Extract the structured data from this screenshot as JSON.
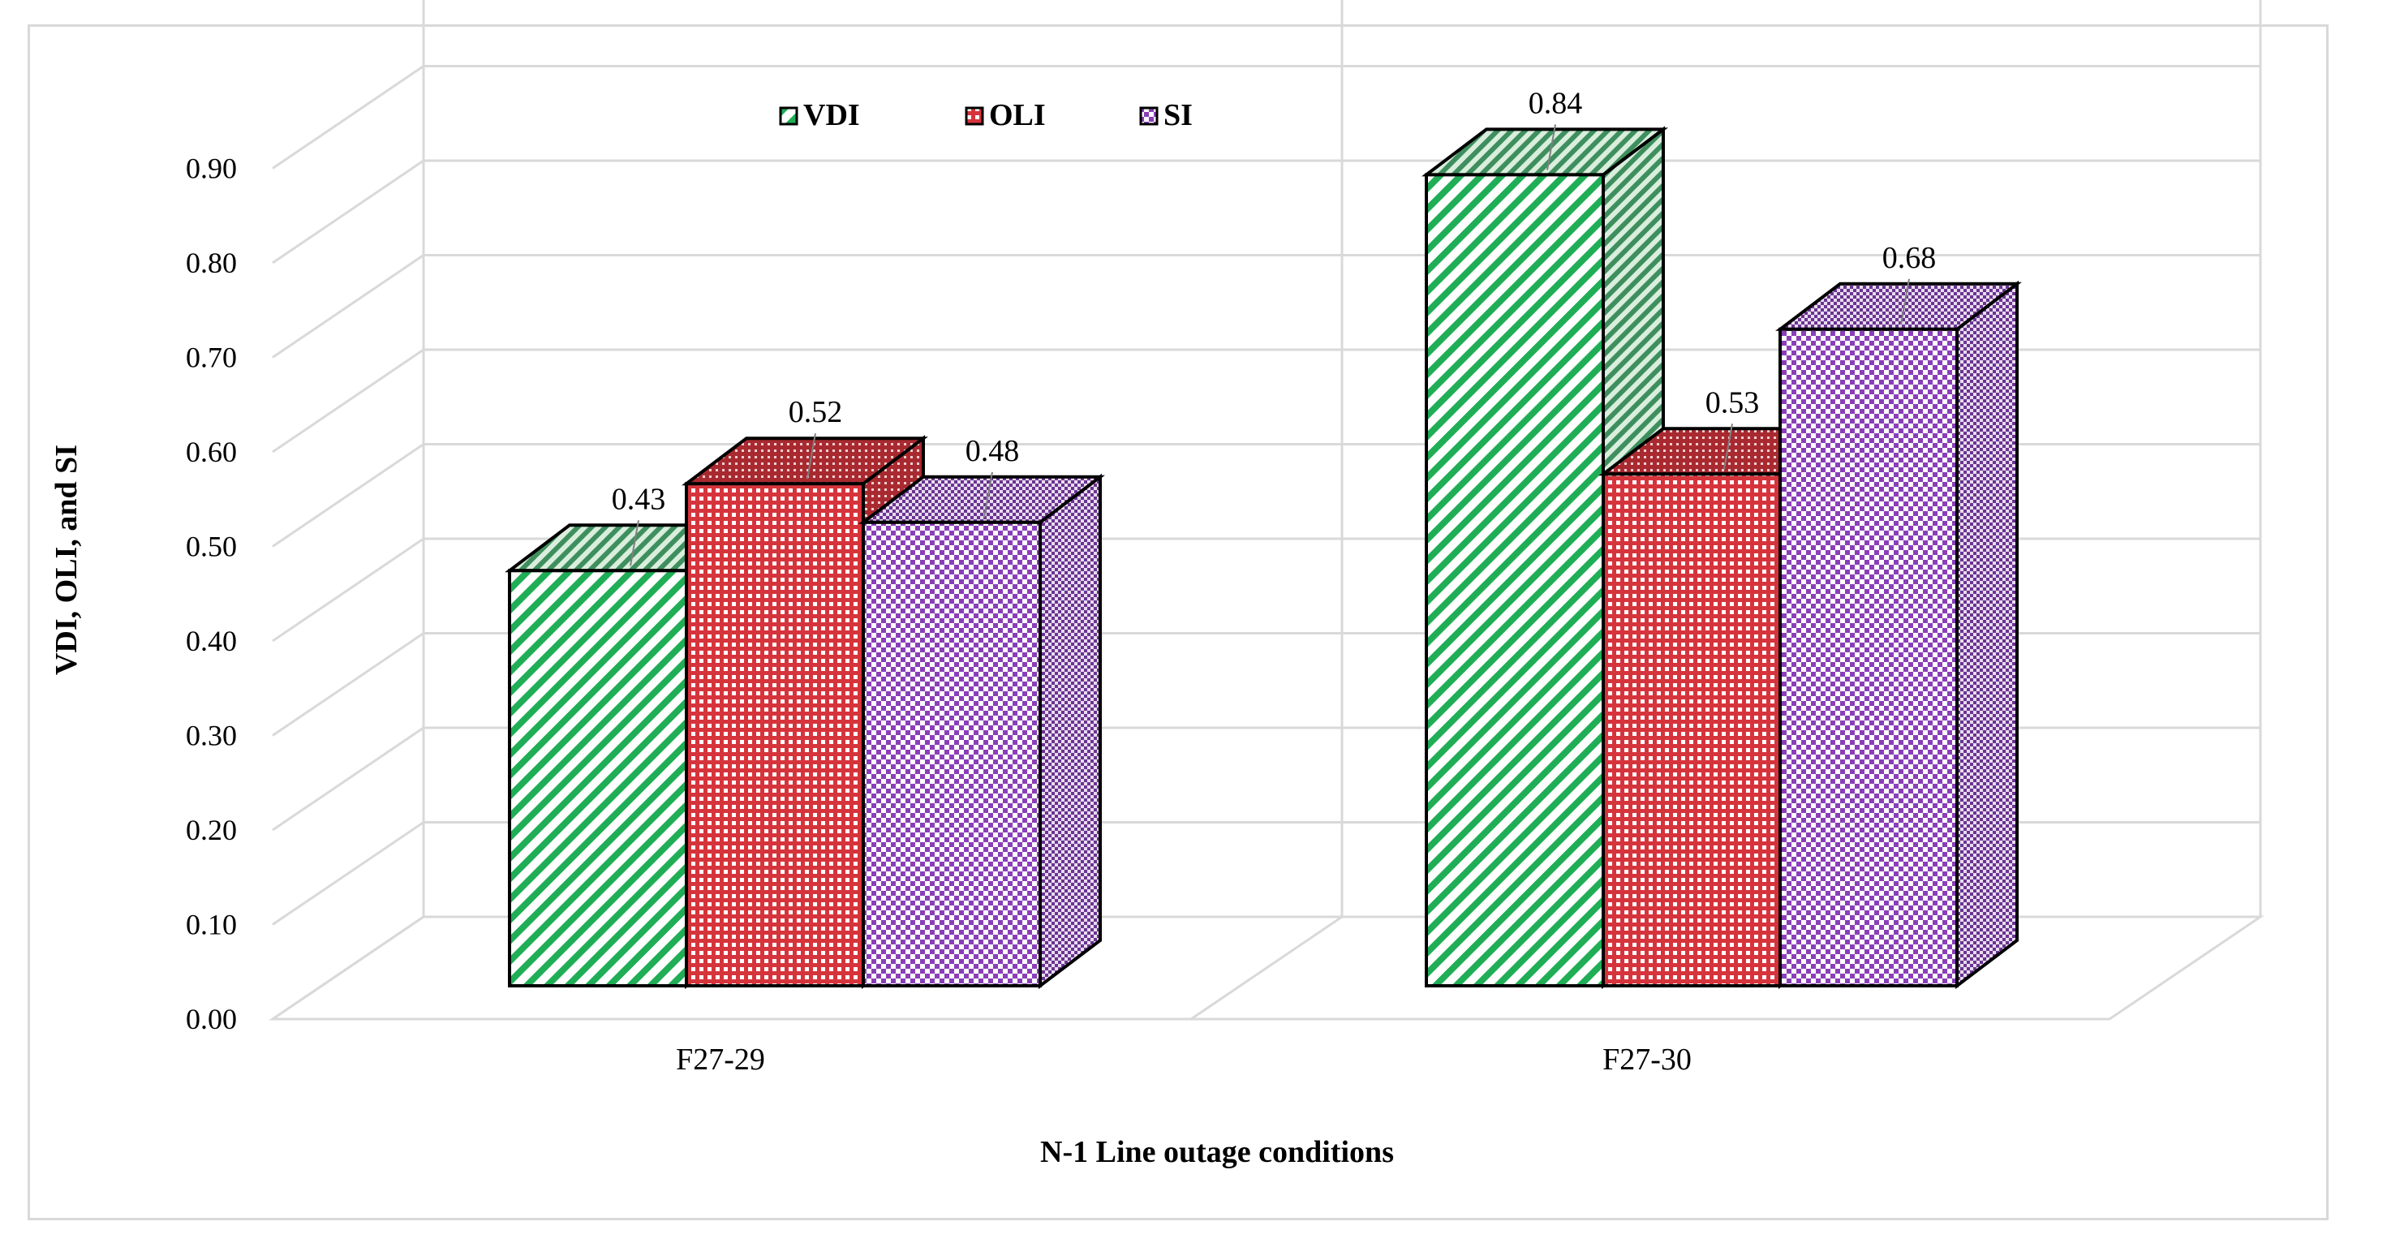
{
  "chart_data": {
    "type": "bar",
    "subtype": "3d-clustered-column",
    "title": "",
    "xlabel": "N-1 Line outage conditions",
    "ylabel": "VDI, OLI, and SI",
    "categories": [
      "F27-29",
      "F27-30"
    ],
    "ylim": [
      0,
      0.9
    ],
    "ytick_step": 0.1,
    "yticks": [
      "0.00",
      "0.10",
      "0.20",
      "0.30",
      "0.40",
      "0.50",
      "0.60",
      "0.70",
      "0.80",
      "0.90"
    ],
    "grid": true,
    "legend_position": "top-center",
    "series": [
      {
        "name": "VDI",
        "values": [
          0.43,
          0.84
        ],
        "labels": [
          "0.43",
          "0.84"
        ],
        "color": "#1fae56",
        "pattern": "diagonal-stripes"
      },
      {
        "name": "OLI",
        "values": [
          0.52,
          0.53
        ],
        "labels": [
          "0.52",
          "0.53"
        ],
        "color": "#d6343c",
        "pattern": "small-grid"
      },
      {
        "name": "SI",
        "values": [
          0.48,
          0.68
        ],
        "labels": [
          "0.48",
          "0.68"
        ],
        "color": "#8a3fb8",
        "pattern": "checkerboard"
      }
    ]
  }
}
